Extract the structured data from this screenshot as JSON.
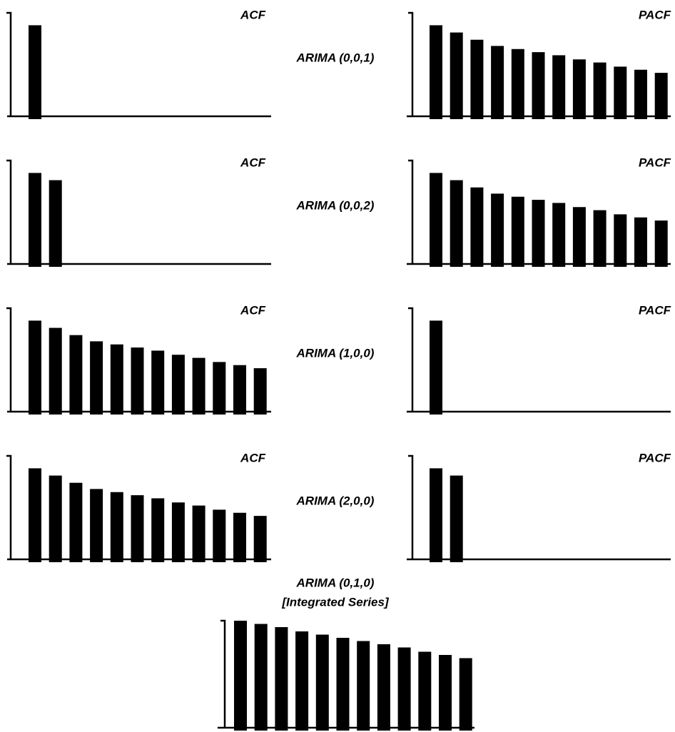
{
  "chart_data": [
    {
      "type": "bar",
      "title": "ACF",
      "values": [
        0.88
      ],
      "ylim": [
        0,
        1
      ]
    },
    {
      "type": "bar",
      "title": "PACF",
      "values": [
        0.88,
        0.81,
        0.74,
        0.68,
        0.65,
        0.62,
        0.59,
        0.55,
        0.52,
        0.48,
        0.45,
        0.42
      ],
      "ylim": [
        0,
        1
      ]
    },
    {
      "type": "bar",
      "title": "ACF",
      "values": [
        0.88,
        0.81
      ],
      "ylim": [
        0,
        1
      ]
    },
    {
      "type": "bar",
      "title": "PACF",
      "values": [
        0.88,
        0.81,
        0.74,
        0.68,
        0.65,
        0.62,
        0.59,
        0.55,
        0.52,
        0.48,
        0.45,
        0.42
      ],
      "ylim": [
        0,
        1
      ]
    },
    {
      "type": "bar",
      "title": "ACF",
      "values": [
        0.88,
        0.81,
        0.74,
        0.68,
        0.65,
        0.62,
        0.59,
        0.55,
        0.52,
        0.48,
        0.45,
        0.42
      ],
      "ylim": [
        0,
        1
      ]
    },
    {
      "type": "bar",
      "title": "PACF",
      "values": [
        0.88
      ],
      "ylim": [
        0,
        1
      ]
    },
    {
      "type": "bar",
      "title": "ACF",
      "values": [
        0.88,
        0.81,
        0.74,
        0.68,
        0.65,
        0.62,
        0.59,
        0.55,
        0.52,
        0.48,
        0.45,
        0.42
      ],
      "ylim": [
        0,
        1
      ]
    },
    {
      "type": "bar",
      "title": "PACF",
      "values": [
        0.88,
        0.81
      ],
      "ylim": [
        0,
        1
      ]
    },
    {
      "type": "bar",
      "title": "ARIMA (0,1,0)",
      "subtitle": "[Integrated Series]",
      "values": [
        1.0,
        0.97,
        0.94,
        0.9,
        0.87,
        0.84,
        0.81,
        0.78,
        0.75,
        0.71,
        0.68,
        0.65
      ],
      "ylim": [
        0,
        1
      ]
    }
  ],
  "row_labels": [
    "ARIMA (0,0,1)",
    "ARIMA (0,0,2)",
    "ARIMA (1,0,0)",
    "ARIMA (2,0,0)"
  ]
}
